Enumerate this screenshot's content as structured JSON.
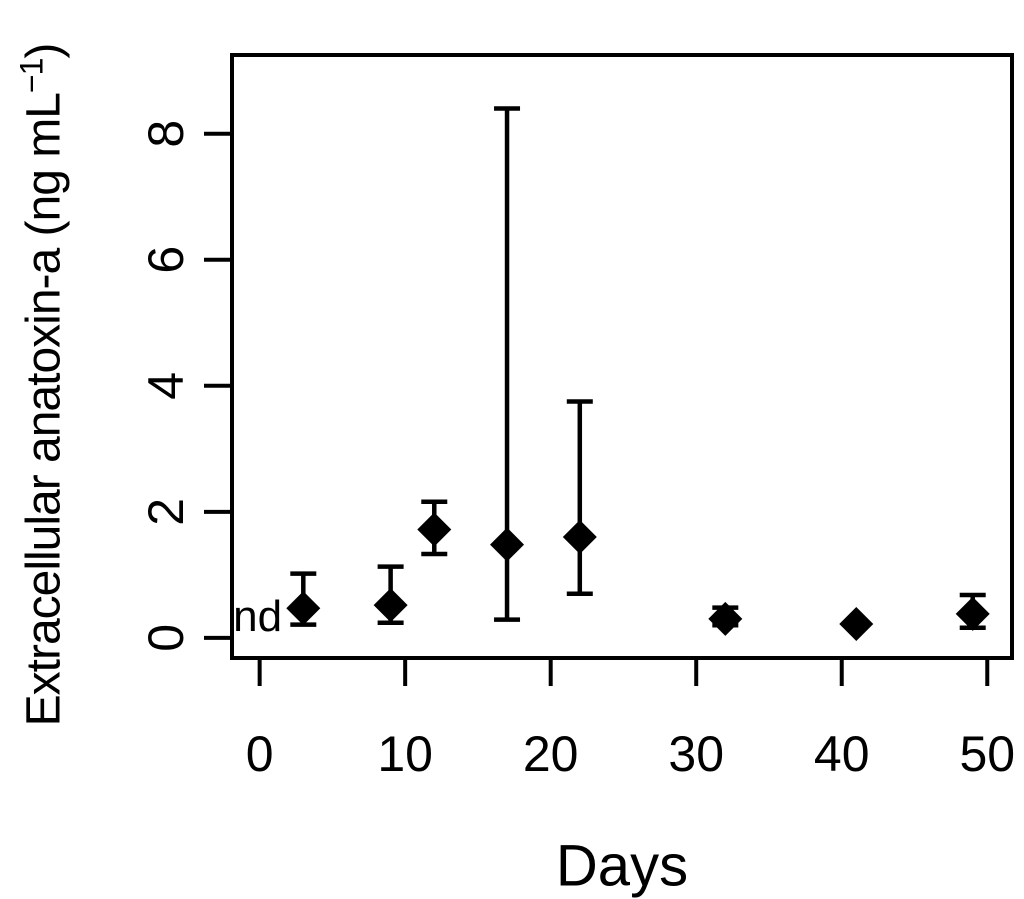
{
  "figure": {
    "background": "#ffffff",
    "foreground": "#000000"
  },
  "chart_data": {
    "type": "scatter",
    "title": "",
    "xlabel": "Days",
    "ylabel": "Extracellular anatoxin-a (ng mL-1)",
    "ylabel_parts": {
      "main": "Extracellular anatoxin-a (ng mL",
      "sup": "−1",
      "close": ")"
    },
    "marker": "filled-diamond",
    "marker_color": "#000000",
    "grid": false,
    "legend": "none",
    "x_ticks": [
      0,
      10,
      20,
      30,
      40,
      50
    ],
    "y_ticks": [
      0,
      2,
      4,
      6,
      8
    ],
    "xlim": [
      -1.9,
      51.7
    ],
    "ylim": [
      -0.32,
      9.25
    ],
    "series": [
      {
        "name": "Extracellular anatoxin-a",
        "points": [
          {
            "x": 3,
            "y": 0.47,
            "err_lo": 0.21,
            "err_hi": 1.02
          },
          {
            "x": 9,
            "y": 0.52,
            "err_lo": 0.24,
            "err_hi": 1.13
          },
          {
            "x": 12,
            "y": 1.72,
            "err_lo": 1.33,
            "err_hi": 2.16
          },
          {
            "x": 17,
            "y": 1.48,
            "err_lo": 0.29,
            "err_hi": 8.4
          },
          {
            "x": 22,
            "y": 1.6,
            "err_lo": 0.7,
            "err_hi": 3.75
          },
          {
            "x": 32,
            "y": 0.3,
            "err_lo": 0.2,
            "err_hi": 0.48
          },
          {
            "x": 41,
            "y": 0.22,
            "err_lo": null,
            "err_hi": null
          },
          {
            "x": 49,
            "y": 0.38,
            "err_lo": 0.16,
            "err_hi": 0.68
          }
        ]
      }
    ],
    "annotations": [
      {
        "text": "nd",
        "x": 0,
        "y": 0.34
      }
    ]
  }
}
